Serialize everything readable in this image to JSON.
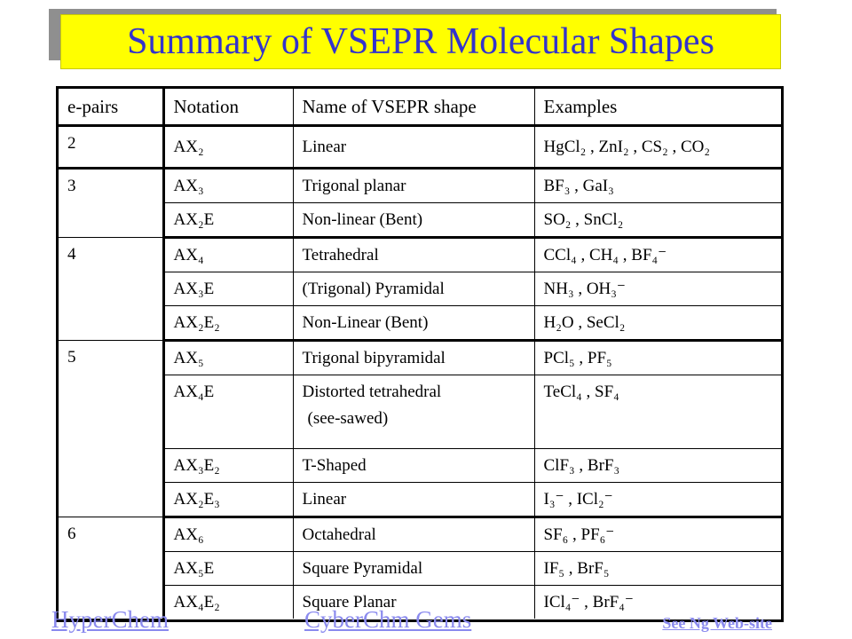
{
  "title": "Summary of VSEPR Molecular Shapes",
  "headers": {
    "e_pairs": "e-pairs",
    "notation": "Notation",
    "name": "Name of VSEPR shape",
    "examples": "Examples"
  },
  "rows": [
    {
      "e": "2",
      "notation": "AX₂",
      "name": "Linear",
      "examples": "HgCl₂ , ZnI₂ , CS₂ , CO₂"
    },
    {
      "e": "3",
      "notation": "AX₃",
      "name": "Trigonal planar",
      "examples": "BF₃ , GaI₃"
    },
    {
      "e": "",
      "notation": "AX₂E",
      "name": "Non-linear (Bent)",
      "examples": "SO₂ , SnCl₂"
    },
    {
      "e": "4",
      "notation": "AX₄",
      "name": "Tetrahedral",
      "examples": "CCl₄ , CH₄ , BF₄⁻"
    },
    {
      "e": "",
      "notation": "AX₃E",
      "name": "(Trigonal) Pyramidal",
      "examples": "NH₃ , OH₃⁻"
    },
    {
      "e": "",
      "notation": "AX₂E₂",
      "name": "Non-Linear (Bent)",
      "examples": "H₂O , SeCl₂"
    },
    {
      "e": "5",
      "notation": "AX₅",
      "name": "Trigonal bipyramidal",
      "examples": "PCl₅ , PF₅"
    },
    {
      "e": "",
      "notation": "AX₄E",
      "name": "Distorted tetrahedral",
      "name_line2": "(see-sawed)",
      "examples": "TeCl₄ , SF₄"
    },
    {
      "e": "",
      "notation": "AX₃E₂",
      "name": "T-Shaped",
      "examples": "ClF₃ , BrF₃"
    },
    {
      "e": "",
      "notation": "AX₂E₃",
      "name": "Linear",
      "examples": "I₃⁻ , ICl₂⁻"
    },
    {
      "e": "6",
      "notation": "AX₆",
      "name": "Octahedral",
      "examples": "SF₆ , PF₆⁻"
    },
    {
      "e": "",
      "notation": "AX₅E",
      "name": "Square Pyramidal",
      "examples": "IF₅ , BrF₅"
    },
    {
      "e": "",
      "notation": "AX₄E₂",
      "name": "Square Planar",
      "examples": "ICl₄⁻ , BrF₄⁻"
    }
  ],
  "links": {
    "hyperchem": "HyperChem",
    "cyberchem": "CyberChm Gems",
    "ng": "See Ng Web-site"
  },
  "colors": {
    "title_bg": "#ffff00",
    "title_text": "#3333cc",
    "link": "#8a8aee"
  }
}
